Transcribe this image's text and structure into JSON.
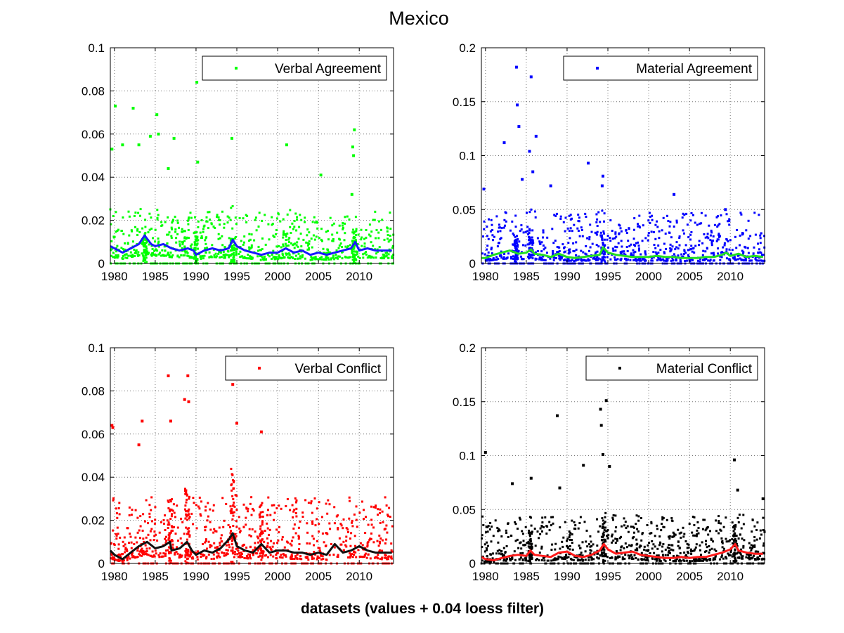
{
  "figure": {
    "title": "Mexico",
    "xlabel": "datasets (values + 0.04 loess filter)"
  },
  "chart_data": [
    {
      "type": "scatter",
      "series": [
        {
          "name": "Verbal Agreement",
          "marker_color": "#00ff00",
          "role": "values"
        },
        {
          "name": "loess filter",
          "line_color": "#1a1aff",
          "role": "smoothed",
          "x": [
            1979.5,
            1980,
            1981,
            1982,
            1983,
            1983.7,
            1984.5,
            1985,
            1986,
            1987,
            1988,
            1989,
            1989.7,
            1990,
            1991,
            1992,
            1993,
            1994,
            1994.5,
            1995,
            1996,
            1997,
            1998,
            1999,
            2000,
            2001,
            2002,
            2003,
            2004,
            2005,
            2006,
            2007,
            2008,
            2009,
            2009.5,
            2010,
            2011,
            2012,
            2013,
            2014
          ],
          "values": [
            0.008,
            0.007,
            0.005,
            0.007,
            0.009,
            0.013,
            0.009,
            0.008,
            0.009,
            0.007,
            0.006,
            0.007,
            0.006,
            0.004,
            0.006,
            0.007,
            0.006,
            0.007,
            0.011,
            0.008,
            0.006,
            0.005,
            0.004,
            0.005,
            0.005,
            0.007,
            0.005,
            0.006,
            0.004,
            0.005,
            0.004,
            0.005,
            0.006,
            0.007,
            0.01,
            0.006,
            0.007,
            0.006,
            0.006,
            0.006
          ]
        }
      ],
      "x_range": [
        1979.5,
        2014.2
      ],
      "ylim": [
        0,
        0.1
      ],
      "yticks": [
        "0",
        "0.02",
        "0.04",
        "0.06",
        "0.08",
        "0.1"
      ],
      "xticks": [
        "1980",
        "1985",
        "1990",
        "1995",
        "2000",
        "2005",
        "2010"
      ],
      "legend": "top-right",
      "grid": true,
      "baseline": 0.004,
      "spread": 0.007,
      "density": 900,
      "outliers": [
        [
          1979.7,
          0.053
        ],
        [
          1980.1,
          0.073
        ],
        [
          1981.0,
          0.055
        ],
        [
          1982.3,
          0.072
        ],
        [
          1983.0,
          0.055
        ],
        [
          1984.4,
          0.059
        ],
        [
          1985.2,
          0.069
        ],
        [
          1985.4,
          0.06
        ],
        [
          1986.6,
          0.044
        ],
        [
          1987.3,
          0.058
        ],
        [
          1990.1,
          0.084
        ],
        [
          1990.2,
          0.047
        ],
        [
          1994.4,
          0.058
        ],
        [
          2001.1,
          0.055
        ],
        [
          2005.3,
          0.041
        ],
        [
          2009.4,
          0.062
        ],
        [
          2009.2,
          0.054
        ],
        [
          2009.3,
          0.05
        ],
        [
          2009.1,
          0.032
        ]
      ],
      "spikes": [
        [
          1983.7,
          0.012
        ],
        [
          1990,
          0.015
        ],
        [
          1994.5,
          0.012
        ],
        [
          2009.4,
          0.015
        ]
      ]
    },
    {
      "type": "scatter",
      "series": [
        {
          "name": "Material Agreement",
          "marker_color": "#0000ff",
          "role": "values"
        },
        {
          "name": "loess filter",
          "line_color": "#22dd22",
          "role": "smoothed",
          "x": [
            1979.5,
            1980,
            1981,
            1982,
            1983,
            1984,
            1985,
            1985.6,
            1986,
            1987,
            1988,
            1989,
            1990,
            1991,
            1992,
            1993,
            1994,
            1994.4,
            1995,
            1996,
            1997,
            1998,
            1999,
            2000,
            2001,
            2002,
            2003,
            2004,
            2005,
            2006,
            2007,
            2008,
            2009,
            2009.5,
            2010,
            2011,
            2012,
            2013,
            2014
          ],
          "values": [
            0.005,
            0.005,
            0.008,
            0.01,
            0.012,
            0.009,
            0.01,
            0.013,
            0.009,
            0.008,
            0.006,
            0.009,
            0.006,
            0.005,
            0.006,
            0.007,
            0.008,
            0.015,
            0.01,
            0.008,
            0.007,
            0.006,
            0.006,
            0.006,
            0.007,
            0.006,
            0.006,
            0.005,
            0.005,
            0.005,
            0.006,
            0.006,
            0.008,
            0.01,
            0.007,
            0.009,
            0.006,
            0.007,
            0.006
          ]
        }
      ],
      "x_range": [
        1979.5,
        2014.2
      ],
      "ylim": [
        0,
        0.2
      ],
      "yticks": [
        "0",
        "0.05",
        "0.1",
        "0.15",
        "0.2"
      ],
      "xticks": [
        "1980",
        "1985",
        "1990",
        "1995",
        "2000",
        "2005",
        "2010"
      ],
      "legend": "top-right",
      "grid": true,
      "baseline": 0.006,
      "spread": 0.014,
      "density": 900,
      "outliers": [
        [
          1983.8,
          0.182
        ],
        [
          1983.9,
          0.147
        ],
        [
          1984.1,
          0.127
        ],
        [
          1982.3,
          0.112
        ],
        [
          1985.6,
          0.173
        ],
        [
          1986.2,
          0.118
        ],
        [
          1985.4,
          0.104
        ],
        [
          1985.8,
          0.085
        ],
        [
          1992.6,
          0.093
        ],
        [
          1994.4,
          0.081
        ],
        [
          1994.3,
          0.072
        ],
        [
          1988.0,
          0.072
        ],
        [
          2003.1,
          0.064
        ],
        [
          2009.4,
          0.05
        ],
        [
          1979.8,
          0.069
        ],
        [
          1984.5,
          0.078
        ]
      ],
      "spikes": [
        [
          1983.8,
          0.025
        ],
        [
          1985.6,
          0.025
        ],
        [
          1994.4,
          0.03
        ]
      ]
    },
    {
      "type": "scatter",
      "series": [
        {
          "name": "Verbal Conflict",
          "marker_color": "#ff0000",
          "role": "values"
        },
        {
          "name": "loess filter",
          "line_color": "#111111",
          "role": "smoothed",
          "x": [
            1979.5,
            1980,
            1981,
            1982,
            1983,
            1984,
            1985,
            1986,
            1986.8,
            1987,
            1988,
            1988.9,
            1989.5,
            1990,
            1991,
            1992,
            1993,
            1994,
            1994.5,
            1995,
            1996,
            1997,
            1998,
            1999,
            2000,
            2001,
            2002,
            2003,
            2004,
            2005,
            2006,
            2007,
            2008,
            2009,
            2010,
            2011,
            2012,
            2013,
            2014
          ],
          "values": [
            0.006,
            0.004,
            0.002,
            0.005,
            0.008,
            0.01,
            0.007,
            0.008,
            0.01,
            0.006,
            0.007,
            0.01,
            0.006,
            0.004,
            0.006,
            0.005,
            0.007,
            0.011,
            0.014,
            0.008,
            0.006,
            0.005,
            0.009,
            0.005,
            0.006,
            0.006,
            0.005,
            0.005,
            0.004,
            0.005,
            0.004,
            0.009,
            0.005,
            0.006,
            0.008,
            0.006,
            0.005,
            0.005,
            0.005
          ]
        }
      ],
      "x_range": [
        1979.5,
        2014.2
      ],
      "ylim": [
        0,
        0.1
      ],
      "yticks": [
        "0",
        "0.02",
        "0.04",
        "0.06",
        "0.08",
        "0.1"
      ],
      "xticks": [
        "1980",
        "1985",
        "1990",
        "1995",
        "2000",
        "2005",
        "2010"
      ],
      "legend": "top-right",
      "grid": true,
      "baseline": 0.006,
      "spread": 0.009,
      "density": 900,
      "outliers": [
        [
          1979.7,
          0.064
        ],
        [
          1979.8,
          0.063
        ],
        [
          1983.4,
          0.066
        ],
        [
          1986.6,
          0.087
        ],
        [
          1989.0,
          0.087
        ],
        [
          1988.6,
          0.076
        ],
        [
          1989.1,
          0.075
        ],
        [
          1994.5,
          0.083
        ],
        [
          1995.0,
          0.065
        ],
        [
          1998.0,
          0.061
        ],
        [
          1986.9,
          0.066
        ],
        [
          1983.0,
          0.055
        ]
      ],
      "spikes": [
        [
          1986.8,
          0.03
        ],
        [
          1988.9,
          0.035
        ],
        [
          1994.5,
          0.045
        ],
        [
          1998,
          0.025
        ]
      ]
    },
    {
      "type": "scatter",
      "series": [
        {
          "name": "Material Conflict",
          "marker_color": "#000000",
          "role": "values"
        },
        {
          "name": "loess filter",
          "line_color": "#ff1a1a",
          "role": "smoothed",
          "x": [
            1979.5,
            1980,
            1981,
            1982,
            1983,
            1984,
            1985,
            1985.5,
            1986,
            1987,
            1988,
            1989,
            1990,
            1991,
            1992,
            1993,
            1994,
            1994.5,
            1995,
            1996,
            1997,
            1998,
            1999,
            2000,
            2001,
            2002,
            2003,
            2004,
            2005,
            2006,
            2007,
            2008,
            2009,
            2010,
            2010.6,
            2011,
            2012,
            2013,
            2014
          ],
          "values": [
            0.006,
            0.004,
            0.003,
            0.005,
            0.007,
            0.008,
            0.007,
            0.012,
            0.008,
            0.007,
            0.006,
            0.01,
            0.011,
            0.007,
            0.006,
            0.008,
            0.012,
            0.018,
            0.013,
            0.009,
            0.01,
            0.011,
            0.008,
            0.007,
            0.006,
            0.005,
            0.005,
            0.006,
            0.005,
            0.006,
            0.006,
            0.008,
            0.01,
            0.013,
            0.018,
            0.012,
            0.01,
            0.009,
            0.009
          ]
        }
      ],
      "x_range": [
        1979.5,
        2014.2
      ],
      "ylim": [
        0,
        0.2
      ],
      "yticks": [
        "0",
        "0.05",
        "0.1",
        "0.15",
        "0.2"
      ],
      "xticks": [
        "1980",
        "1985",
        "1990",
        "1995",
        "2000",
        "2005",
        "2010"
      ],
      "legend": "top-right",
      "grid": true,
      "baseline": 0.007,
      "spread": 0.013,
      "density": 900,
      "outliers": [
        [
          1980.0,
          0.103
        ],
        [
          1988.8,
          0.137
        ],
        [
          1994.1,
          0.143
        ],
        [
          1994.2,
          0.128
        ],
        [
          1994.8,
          0.151
        ],
        [
          1992.0,
          0.091
        ],
        [
          1994.4,
          0.101
        ],
        [
          1995.2,
          0.09
        ],
        [
          2010.5,
          0.096
        ],
        [
          2010.9,
          0.068
        ],
        [
          1983.3,
          0.074
        ],
        [
          1985.6,
          0.079
        ],
        [
          1989.1,
          0.07
        ],
        [
          2014.0,
          0.06
        ]
      ],
      "spikes": [
        [
          1985.5,
          0.03
        ],
        [
          1994.5,
          0.04
        ],
        [
          2010.6,
          0.035
        ]
      ]
    }
  ]
}
